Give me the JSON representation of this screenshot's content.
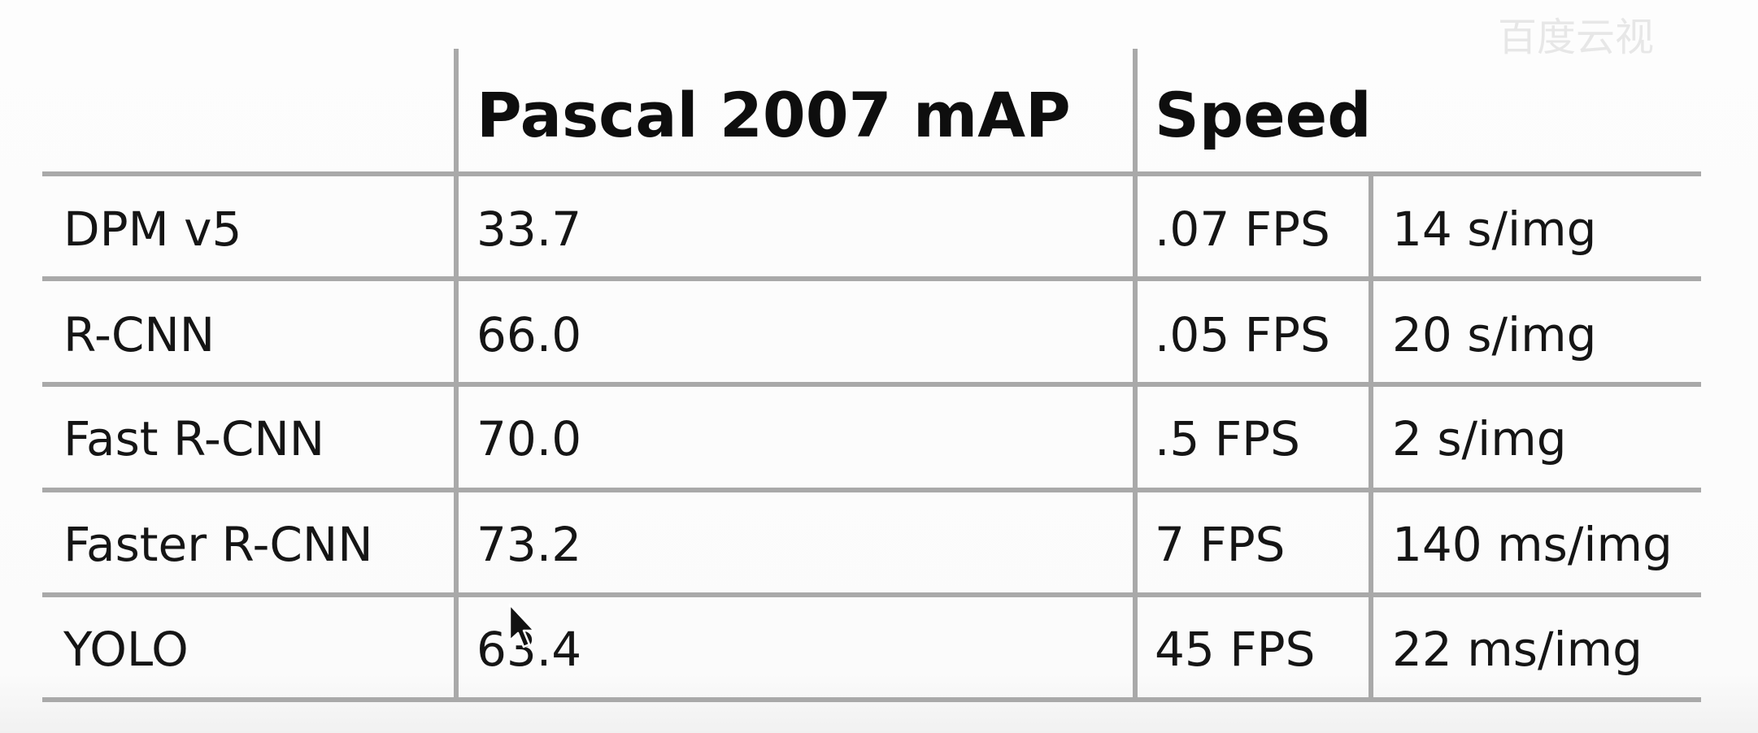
{
  "watermark": "百度云视",
  "table": {
    "header": {
      "empty": "",
      "map": "Pascal 2007 mAP",
      "speed": "Speed"
    },
    "rows": [
      {
        "name": "DPM v5",
        "map": "33.7",
        "fps": ".07 FPS",
        "time": "14 s/img"
      },
      {
        "name": "R-CNN",
        "map": "66.0",
        "fps": ".05 FPS",
        "time": "20 s/img"
      },
      {
        "name": "Fast R-CNN",
        "map": "70.0",
        "fps": ".5 FPS",
        "time": "2 s/img"
      },
      {
        "name": "Faster R-CNN",
        "map": "73.2",
        "fps": "7 FPS",
        "time": "140 ms/img"
      },
      {
        "name": "YOLO",
        "map": "63.4",
        "fps": "45 FPS",
        "time": "22 ms/img"
      }
    ]
  }
}
